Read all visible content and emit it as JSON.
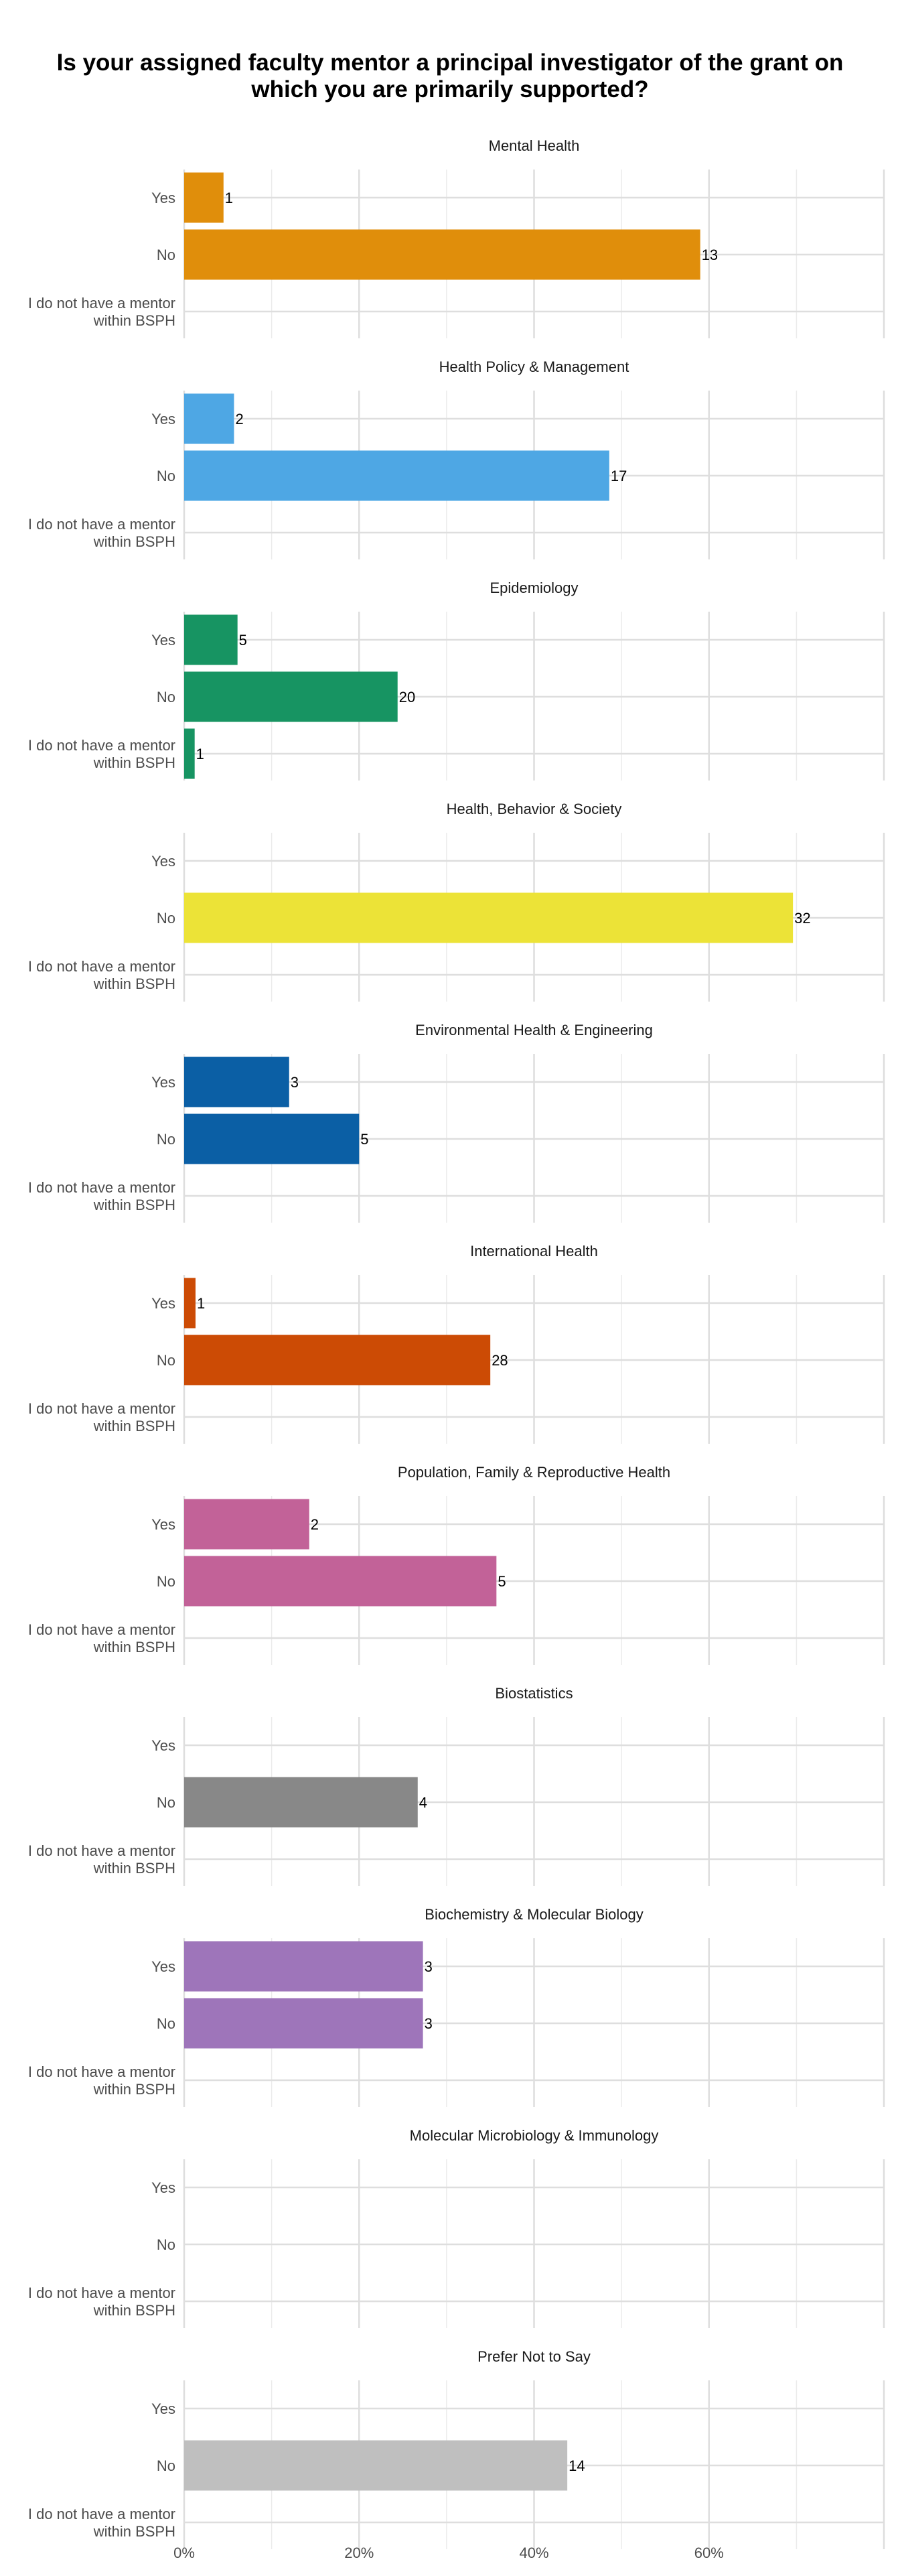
{
  "chart_data": {
    "type": "bar",
    "orientation": "horizontal",
    "title": "Is your assigned faculty mentor a principal investigator of the grant on which you are primarily supported?",
    "xlabel": "",
    "ylabel": "",
    "xlim": [
      0,
      80
    ],
    "x_ticks": [
      "0%",
      "20%",
      "40%",
      "60%"
    ],
    "x_tick_values": [
      0,
      20,
      40,
      60
    ],
    "grid": true,
    "legend": "none",
    "categories": [
      "Yes",
      "No",
      "I do not have a mentor\nwithin BSPH"
    ],
    "panels": [
      {
        "name": "Mental Health",
        "color": "#E08E0B",
        "values": [
          4.5,
          59.0,
          0
        ],
        "labels": [
          "1",
          "13",
          ""
        ]
      },
      {
        "name": "Health Policy & Management",
        "color": "#4EA7E4",
        "values": [
          5.7,
          48.6,
          0
        ],
        "labels": [
          "2",
          "17",
          ""
        ]
      },
      {
        "name": "Epidemiology",
        "color": "#179462",
        "values": [
          6.1,
          24.4,
          1.2
        ],
        "labels": [
          "5",
          "20",
          "1"
        ]
      },
      {
        "name": "Health, Behavior & Society",
        "color": "#ECE337",
        "values": [
          0,
          69.6,
          0
        ],
        "labels": [
          "",
          "32",
          ""
        ]
      },
      {
        "name": "Environmental Health & Engineering",
        "color": "#0B5FA5",
        "values": [
          12.0,
          20.0,
          0
        ],
        "labels": [
          "3",
          "5",
          ""
        ]
      },
      {
        "name": "International Health",
        "color": "#CC4B05",
        "values": [
          1.3,
          35.0,
          0
        ],
        "labels": [
          "1",
          "28",
          ""
        ]
      },
      {
        "name": "Population, Family & Reproductive Health",
        "color": "#C26298",
        "values": [
          14.3,
          35.7,
          0
        ],
        "labels": [
          "2",
          "5",
          ""
        ]
      },
      {
        "name": "Biostatistics",
        "color": "#888888",
        "values": [
          0,
          26.7,
          0
        ],
        "labels": [
          "",
          "4",
          ""
        ]
      },
      {
        "name": "Biochemistry & Molecular Biology",
        "color": "#9E75BA",
        "values": [
          27.3,
          27.3,
          0
        ],
        "labels": [
          "3",
          "3",
          ""
        ]
      },
      {
        "name": "Molecular Microbiology & Immunology",
        "color": "#888888",
        "values": [
          0,
          0,
          0
        ],
        "labels": [
          "",
          "",
          ""
        ]
      },
      {
        "name": "Prefer Not to Say",
        "color": "#BFBFBF",
        "values": [
          0,
          43.8,
          0
        ],
        "labels": [
          "",
          "14",
          ""
        ]
      }
    ]
  }
}
